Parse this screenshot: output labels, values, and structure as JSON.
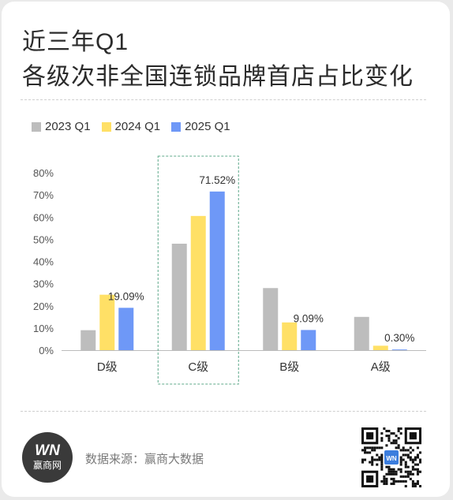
{
  "header": {
    "title_line1": "近三年Q1",
    "title_line2": "各级次非全国连锁品牌首店占比变化"
  },
  "colors": {
    "2023 Q1": "#bdbdbd",
    "2024 Q1": "#ffe066",
    "2025 Q1": "#6e98f7",
    "highlight_border": "#5ea88a"
  },
  "chart_data": {
    "type": "bar",
    "categories": [
      "D级",
      "C级",
      "B级",
      "A级"
    ],
    "series": [
      {
        "name": "2023 Q1",
        "values": [
          9,
          48,
          28,
          15
        ]
      },
      {
        "name": "2024 Q1",
        "values": [
          25,
          60.5,
          12.5,
          2
        ]
      },
      {
        "name": "2025 Q1",
        "values": [
          19.09,
          71.52,
          9.09,
          0.3
        ]
      }
    ],
    "data_labels": [
      "19.09%",
      "71.52%",
      "9.09%",
      "0.30%"
    ],
    "y_ticks": [
      "0%",
      "10%",
      "20%",
      "30%",
      "40%",
      "50%",
      "60%",
      "70%",
      "80%"
    ],
    "ylim": [
      0,
      80
    ],
    "legend_position": "top-left",
    "highlighted_category": "C级",
    "grid": false
  },
  "footer": {
    "logo_mark": "WN",
    "logo_name": "赢商网",
    "source_text": "数据来源：赢商大数据",
    "qr_center_text": "WN"
  }
}
